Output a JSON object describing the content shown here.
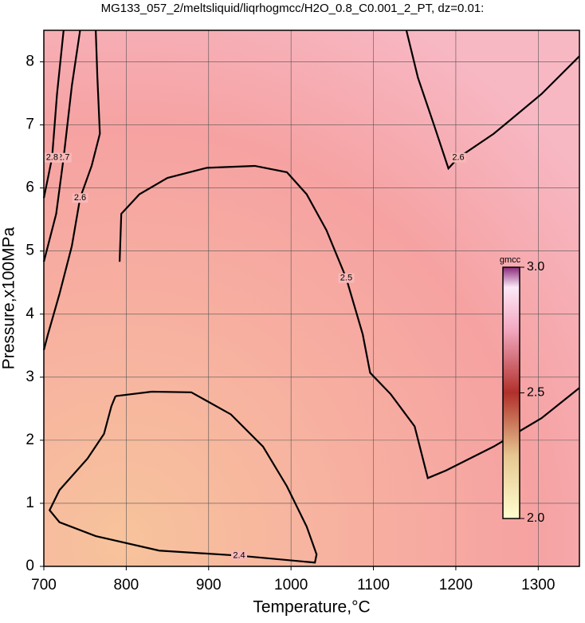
{
  "chart_data": {
    "type": "contour",
    "title": "MG133_057_2/meltsliquid/liqrhogmcc/H2O_0.8_C0.001_2_PT, dz=0.01:",
    "x_label": "Temperature,°C",
    "y_label": "Pressure,x100MPa",
    "xlim": [
      700,
      1350
    ],
    "ylim": [
      0,
      8.5
    ],
    "xticks": [
      700,
      800,
      900,
      1000,
      1100,
      1200,
      1300
    ],
    "yticks": [
      0,
      1,
      2,
      3,
      4,
      5,
      6,
      7,
      8
    ],
    "grid": true,
    "contour_color": "#000000",
    "contours": [
      {
        "level": 2.4,
        "x": [
          787,
          831,
          879,
          927,
          966,
          995,
          1019,
          1031,
          1029,
          937,
          840,
          763,
          719,
          707,
          719,
          753,
          773,
          782,
          787
        ],
        "y": [
          2.7,
          2.77,
          2.76,
          2.41,
          1.9,
          1.27,
          0.63,
          0.19,
          0.06,
          0.17,
          0.25,
          0.48,
          0.7,
          0.89,
          1.21,
          1.71,
          2.1,
          2.54,
          2.7
        ]
      },
      {
        "level": 2.5,
        "x": [
          792,
          794,
          816,
          850,
          898,
          956,
          995,
          1019,
          1043,
          1067,
          1087,
          1096,
          1121,
          1150,
          1166,
          1188,
          1246,
          1304,
          1350
        ],
        "y": [
          4.83,
          5.59,
          5.9,
          6.16,
          6.32,
          6.35,
          6.25,
          5.9,
          5.33,
          4.57,
          3.68,
          3.07,
          2.73,
          2.22,
          1.4,
          1.52,
          1.9,
          2.35,
          2.83
        ]
      },
      {
        "level": 2.6,
        "x": [
          1140,
          1154,
          1174,
          1191,
          1203,
          1246,
          1304,
          1350
        ],
        "y": [
          8.5,
          7.75,
          6.98,
          6.31,
          6.48,
          6.86,
          7.49,
          8.09
        ]
      },
      {
        "level": 2.6,
        "x": [
          763,
          765,
          768,
          758,
          744,
          734,
          719,
          705,
          700
        ],
        "y": [
          8.5,
          7.75,
          6.86,
          6.35,
          5.84,
          5.08,
          4.32,
          3.68,
          3.43
        ]
      },
      {
        "level": 2.7,
        "x": [
          744,
          734,
          724,
          715,
          700
        ],
        "y": [
          8.5,
          7.62,
          6.48,
          5.59,
          4.83
        ]
      },
      {
        "level": 2.8,
        "x": [
          724,
          716,
          710,
          700
        ],
        "y": [
          8.5,
          7.49,
          6.48,
          5.84
        ]
      }
    ],
    "colorbar": {
      "label": "gmcc",
      "lim": [
        2.0,
        3.0
      ],
      "ticks": [
        {
          "value": 2.0,
          "label": "2.0"
        },
        {
          "value": 2.5,
          "label": "2.5"
        },
        {
          "value": 3.0,
          "label": "3.0"
        }
      ]
    }
  }
}
